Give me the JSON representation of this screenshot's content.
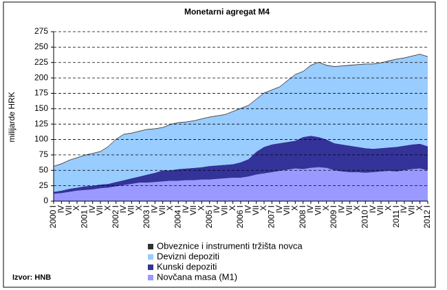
{
  "chart_data": {
    "type": "stacked_area",
    "title": "Monetarni agregat M4",
    "y_label": "milijarde HRK",
    "source": "Izvor: HNB",
    "categories": [
      "2000 I",
      "IV",
      "VII",
      "X",
      "2001 I",
      "IV",
      "VII",
      "X",
      "2002 I",
      "IV",
      "VII",
      "X",
      "2003 I",
      "IV",
      "VII",
      "X",
      "2004 I",
      "IV",
      "VII",
      "X",
      "2005 I",
      "IV",
      "VII",
      "X",
      "2006 I",
      "IV",
      "VII",
      "X",
      "2007 I",
      "IV",
      "VII",
      "X",
      "2008 I",
      "IV",
      "VII",
      "X",
      "2009 I",
      "IV",
      "VII",
      "X",
      "2010 I",
      "IV",
      "VII",
      "X",
      "2011 I",
      "IV",
      "VII",
      "X",
      "2012 I"
    ],
    "series": [
      {
        "name": "Novčana masa (M1)",
        "color": "#9999ff",
        "values": [
          12,
          13,
          15,
          17,
          18,
          19,
          21,
          22,
          24,
          26,
          28,
          30,
          30,
          31,
          32,
          33,
          33,
          34,
          34,
          35,
          35,
          36,
          37,
          38,
          38,
          40,
          43,
          45,
          47,
          49,
          51,
          53,
          52,
          54,
          55,
          54,
          50,
          48,
          47,
          47,
          46,
          47,
          48,
          49,
          48,
          50,
          52,
          53,
          50
        ]
      },
      {
        "name": "Kunski depoziti",
        "color": "#333399",
        "values": [
          3,
          4,
          5,
          5,
          6,
          6,
          6,
          6,
          7,
          8,
          9,
          10,
          13,
          15,
          18,
          17,
          19,
          19,
          20,
          20,
          22,
          22,
          22,
          22,
          25,
          28,
          37,
          43,
          45,
          45,
          45,
          45,
          52,
          52,
          49,
          46,
          44,
          44,
          43,
          41,
          40,
          38,
          38,
          38,
          40,
          40,
          40,
          40,
          39
        ]
      },
      {
        "name": "Devizni depoziti",
        "color": "#99ccff",
        "values": [
          41,
          43,
          46,
          48,
          50,
          52,
          53,
          60,
          69,
          74,
          73,
          73,
          73,
          71,
          69,
          74,
          75,
          75,
          76,
          78,
          79,
          80,
          81,
          85,
          87,
          87,
          85,
          87,
          88,
          91,
          99,
          107,
          106,
          114,
          121,
          120,
          124,
          127,
          130,
          133,
          136,
          137,
          138,
          140,
          142,
          142,
          143,
          145,
          145
        ]
      },
      {
        "name": "Obveznice i instrumenti tržišta novca",
        "color": "#333333",
        "values": [
          1,
          1,
          1,
          1,
          1,
          1,
          1,
          1,
          1,
          1,
          1,
          1,
          1,
          1,
          1,
          1,
          1,
          1,
          1,
          1,
          1,
          1,
          1,
          1,
          1,
          1,
          1,
          1,
          1,
          1,
          1,
          1,
          1,
          1,
          1,
          1,
          1,
          1,
          1,
          1,
          1,
          1,
          1,
          1,
          1,
          1,
          1,
          1,
          1
        ]
      }
    ],
    "ylim": [
      0,
      275
    ],
    "yticks": [
      0,
      25,
      50,
      75,
      100,
      125,
      150,
      175,
      200,
      225,
      250,
      275
    ],
    "grid": true
  }
}
